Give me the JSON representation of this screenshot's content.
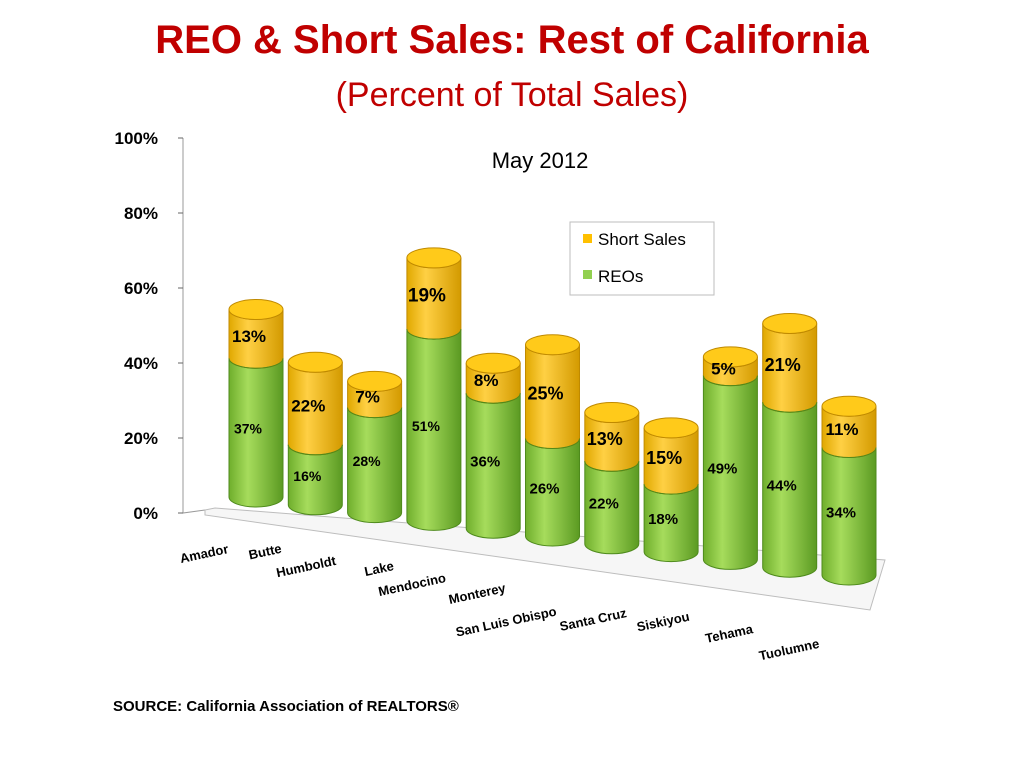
{
  "slide": {
    "title": "REO & Short Sales: Rest of California",
    "subtitle": "(Percent of Total Sales)",
    "source": "SOURCE: California Association of REALTORS®"
  },
  "colors": {
    "reo": "#92d050",
    "reo_dark": "#4e8a1c",
    "short": "#ffc000",
    "short_dark": "#c08a00"
  },
  "chart_data": {
    "type": "bar",
    "stacked": true,
    "style": "3d-cylinder",
    "title": "May 2012",
    "categories": [
      "Amador",
      "Butte",
      "Humboldt",
      "Lake",
      "Mendocino",
      "Monterey",
      "San Luis Obispo",
      "Santa Cruz",
      "Siskiyou",
      "Tehama",
      "Tuolumne"
    ],
    "series": [
      {
        "name": "REOs",
        "values": [
          37,
          16,
          28,
          51,
          36,
          26,
          22,
          18,
          49,
          44,
          34
        ],
        "labels": [
          "37%",
          "16%",
          "28%",
          "51%",
          "36%",
          "26%",
          "22%",
          "18%",
          "49%",
          "44%",
          "34%"
        ]
      },
      {
        "name": "Short Sales",
        "values": [
          13,
          22,
          7,
          19,
          8,
          25,
          13,
          15,
          5,
          21,
          11
        ],
        "labels": [
          "13%",
          "22%",
          "7%",
          "19%",
          "8%",
          "25%",
          "13%",
          "15%",
          "5%",
          "21%",
          "11%"
        ]
      }
    ],
    "yticks": [
      "0%",
      "20%",
      "40%",
      "60%",
      "80%",
      "100%"
    ],
    "ylim": [
      0,
      100
    ],
    "legend": {
      "position": "right",
      "entries": [
        "Short Sales",
        "REOs"
      ]
    }
  }
}
